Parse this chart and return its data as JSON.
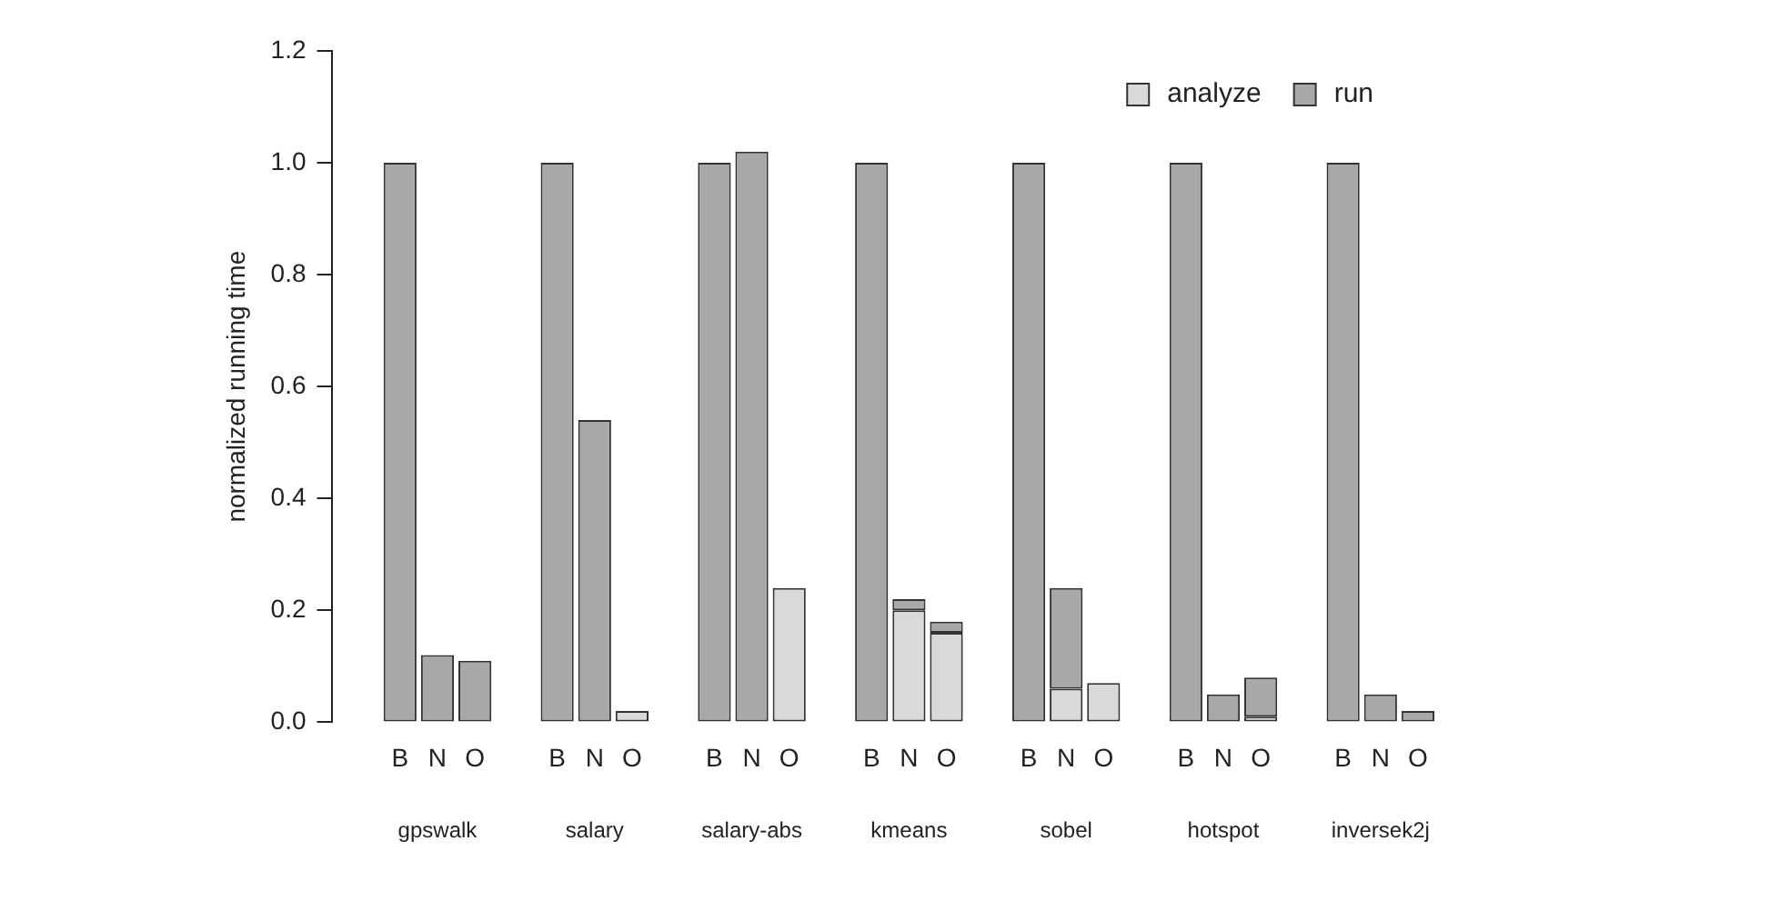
{
  "chart_data": {
    "type": "bar",
    "ylabel": "normalized running time",
    "stacked": true,
    "categories": [
      "B",
      "N",
      "O",
      "B",
      "N",
      "O",
      "B",
      "N",
      "O",
      "B",
      "N",
      "O",
      "B",
      "N",
      "O",
      "B",
      "N",
      "O",
      "B",
      "N",
      "O"
    ],
    "series": [
      {
        "name": "analyze",
        "color": "#d9d9d9",
        "values": [
          0,
          0,
          0,
          0,
          0,
          0.02,
          0,
          0,
          0.24,
          0,
          0.2,
          0.16,
          0,
          0.06,
          0.07,
          0,
          0,
          0.01,
          0,
          0,
          0
        ]
      },
      {
        "name": "run",
        "color": "#a8a8a8",
        "values": [
          1.0,
          0.12,
          0.11,
          1.0,
          0.54,
          0,
          1.0,
          1.02,
          0,
          1.0,
          0.02,
          0.02,
          1.0,
          0.18,
          0,
          1.0,
          0.05,
          0.07,
          1.0,
          0.05,
          0.02
        ]
      }
    ],
    "annotations": [
      "gpswalk",
      "salary",
      "salary-abs",
      "kmeans",
      "sobel",
      "hotspot",
      "inversek2j"
    ],
    "ylim": [
      0,
      1.2
    ],
    "yticks": [
      {
        "value": 0,
        "label": "0.0"
      },
      {
        "value": 0.2,
        "label": "0.2"
      },
      {
        "value": 0.4,
        "label": "0.4"
      },
      {
        "value": 0.6,
        "label": "0.6"
      },
      {
        "value": 0.8,
        "label": "0.8"
      },
      {
        "value": 1.0,
        "label": "1.0"
      },
      {
        "value": 1.2,
        "label": "1.2"
      }
    ],
    "grid": false,
    "legend": "top right"
  }
}
